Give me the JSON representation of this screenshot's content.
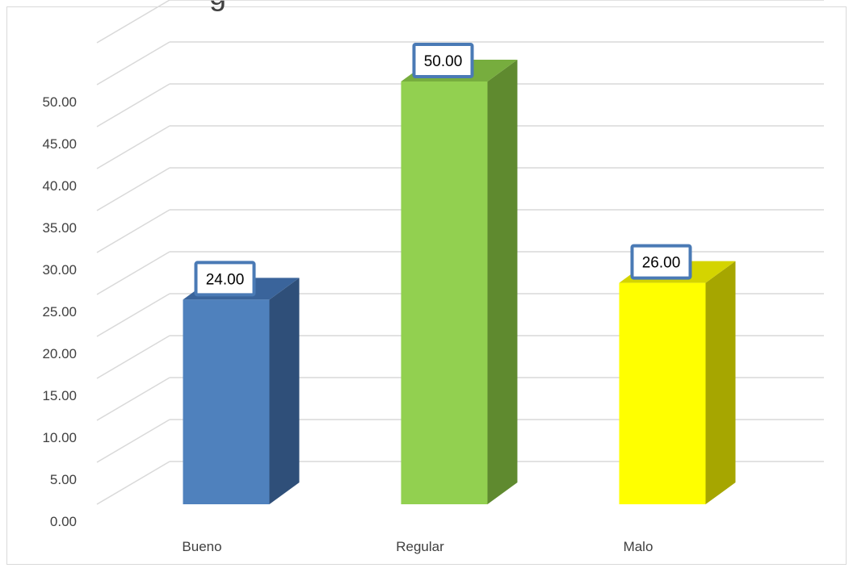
{
  "chart_data": {
    "type": "bar",
    "title_fragment": "g",
    "categories": [
      "Bueno",
      "Regular",
      "Malo"
    ],
    "values": [
      24.0,
      50.0,
      26.0
    ],
    "data_labels": [
      "24.00",
      "50.00",
      "26.00"
    ],
    "ylim": [
      0,
      55
    ],
    "yticks": [
      0,
      5,
      10,
      15,
      20,
      25,
      30,
      35,
      40,
      45,
      50
    ],
    "ytick_labels": [
      "0.00",
      "5.00",
      "10.00",
      "15.00",
      "20.00",
      "25.00",
      "30.00",
      "35.00",
      "40.00",
      "45.00",
      "50.00"
    ],
    "grid": true,
    "style": "3d-column",
    "colors": {
      "Bueno": {
        "front": "#4f81bd",
        "side": "#2f4f79",
        "top": "#3a649b"
      },
      "Regular": {
        "front": "#92d050",
        "side": "#5f8a2f",
        "top": "#77ad3e"
      },
      "Malo": {
        "front": "#ffff00",
        "side": "#a6a600",
        "top": "#d4d400"
      },
      "label_border": "#4a7ab5",
      "gridline": "#d9d9d9",
      "axis_text": "#404040"
    }
  }
}
